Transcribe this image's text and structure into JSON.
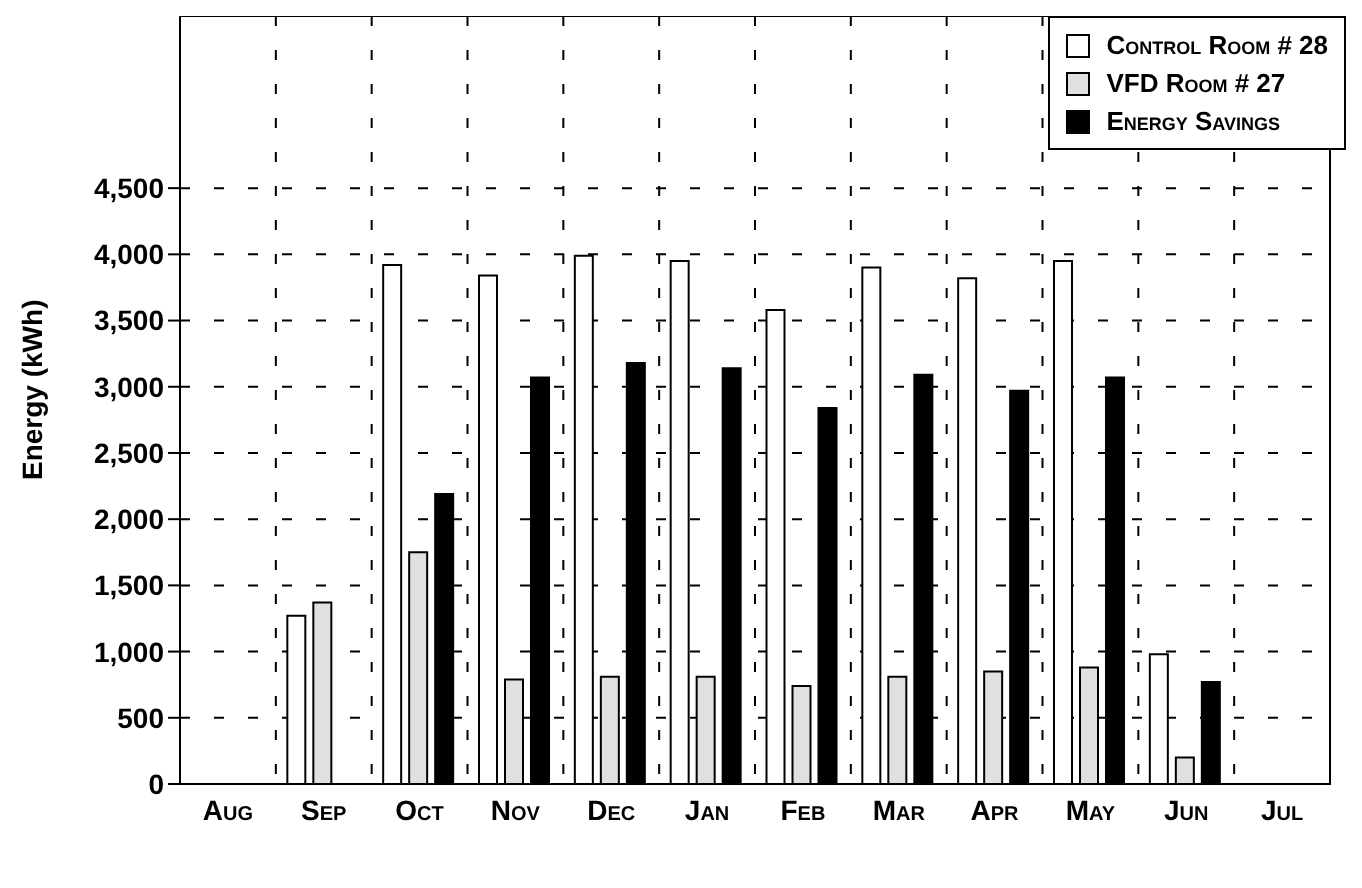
{
  "chart_data": {
    "type": "bar",
    "ylabel": "Energy (kWh)",
    "categories": [
      "Aug",
      "Sep",
      "Oct",
      "Nov",
      "Dec",
      "Jan",
      "Feb",
      "Mar",
      "Apr",
      "May",
      "Jun",
      "Jul"
    ],
    "series": [
      {
        "name": "Control Room # 28",
        "color": "#ffffff",
        "values": [
          null,
          1270,
          3920,
          3840,
          3990,
          3950,
          3580,
          3900,
          3820,
          3950,
          980,
          null
        ]
      },
      {
        "name": "VFD Room # 27",
        "color": "#e0e0e0",
        "values": [
          null,
          1370,
          1750,
          790,
          810,
          810,
          740,
          810,
          850,
          880,
          200,
          null
        ]
      },
      {
        "name": "Energy Savings",
        "color": "#000000",
        "values": [
          null,
          null,
          2190,
          3070,
          3180,
          3140,
          2840,
          3090,
          2970,
          3070,
          770,
          null
        ]
      }
    ],
    "ylim": [
      0,
      5800
    ],
    "yticks": [
      0,
      500,
      {
        "value": 1000,
        "label": "1,000"
      },
      {
        "value": 1500,
        "label": "1,500"
      },
      {
        "value": 2000,
        "label": "2,000"
      },
      {
        "value": 2500,
        "label": "2,500"
      },
      {
        "value": 3000,
        "label": "3,000"
      },
      {
        "value": 3500,
        "label": "3,500"
      },
      {
        "value": 4000,
        "label": "4,000"
      },
      {
        "value": 4500,
        "label": "4,500"
      }
    ],
    "grid": true,
    "legend": "top right"
  }
}
